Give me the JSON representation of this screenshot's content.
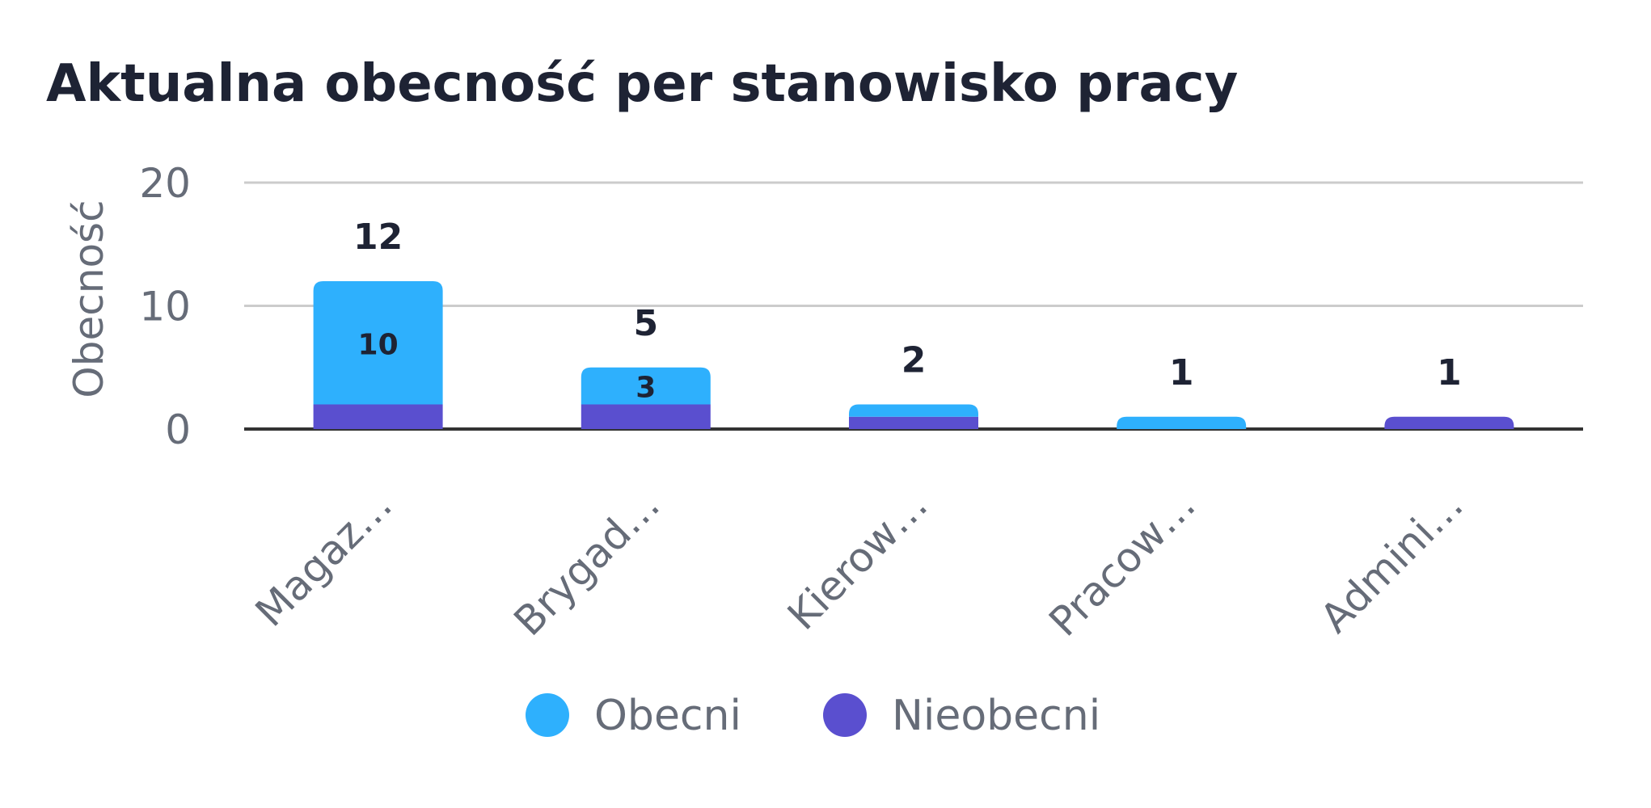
{
  "chart_data": {
    "type": "bar",
    "stacked": true,
    "title": "Aktualna obecność per stanowisko pracy",
    "ylabel": "Obecność",
    "xlabel": "",
    "ylim": [
      0,
      20
    ],
    "yticks": [
      "0",
      "10",
      "20"
    ],
    "yticks_values": [
      0,
      10,
      20
    ],
    "grid": true,
    "legend_position": "bottom",
    "categories": [
      "Magaz…",
      "Brygad…",
      "Kierow…",
      "Pracow…",
      "Admini…"
    ],
    "series": [
      {
        "name": "Nieobecni",
        "color": "#5a4fcf",
        "values": [
          2,
          2,
          1,
          0,
          1
        ]
      },
      {
        "name": "Obecni",
        "color": "#2eb0fd",
        "values": [
          10,
          3,
          1,
          1,
          0
        ],
        "labels": [
          "10",
          "3",
          "",
          "",
          ""
        ]
      }
    ],
    "totals": [
      12,
      5,
      2,
      1,
      1
    ],
    "total_labels": [
      "12",
      "5",
      "2",
      "1",
      "1"
    ]
  },
  "legend": {
    "items": [
      {
        "label": "Obecni",
        "color": "#2eb0fd"
      },
      {
        "label": "Nieobecni",
        "color": "#5a4fcf"
      }
    ]
  },
  "colors": {
    "title": "#1e2334",
    "axis_text": "#666c78",
    "grid": "#cccccc",
    "baseline": "#333333"
  }
}
